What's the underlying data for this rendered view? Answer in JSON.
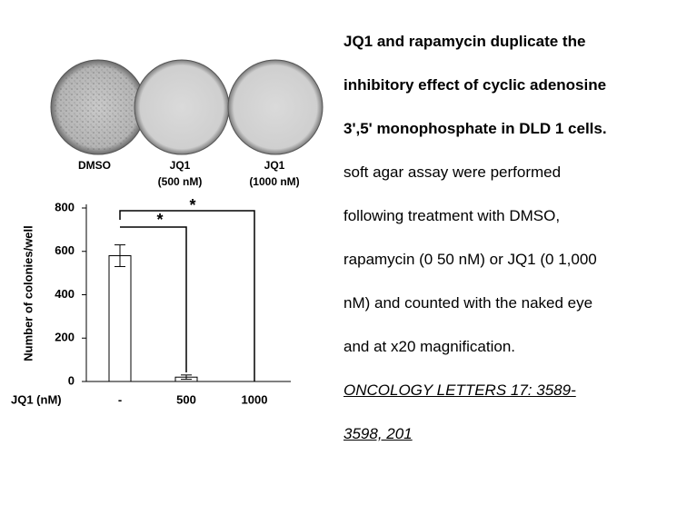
{
  "figure": {
    "dish_labels": [
      [
        "DMSO"
      ],
      [
        "JQ1",
        "(500 nM)"
      ],
      [
        "JQ1",
        "(1000 nM)"
      ]
    ]
  },
  "chart_data": {
    "type": "bar",
    "ylabel": "Number of colonies/well",
    "xlabel": "JQ1 (nM)",
    "categories": [
      "-",
      "500",
      "1000"
    ],
    "values": [
      580,
      20,
      0
    ],
    "errors": [
      50,
      10,
      0
    ],
    "color": "#ffffff",
    "ylim": [
      0,
      800
    ],
    "yticks": [
      0,
      200,
      400,
      600,
      800
    ],
    "annotations": [
      "*",
      "*"
    ]
  },
  "caption": {
    "title_lines": [
      "JQ1 and rapamycin duplicate the",
      "inhibitory effect of cyclic adenosine",
      "3',5' monophosphate in DLD 1 cells."
    ],
    "body_lines": [
      "soft agar assay were performed",
      "following treatment with DMSO,",
      "rapamycin (0 50 nM) or JQ1 (0 1,000",
      "nM) and counted with the naked eye",
      "and at x20 magnification."
    ],
    "citation_lines": [
      "ONCOLOGY LETTERS  17:  3589-",
      "3598,  201"
    ]
  }
}
